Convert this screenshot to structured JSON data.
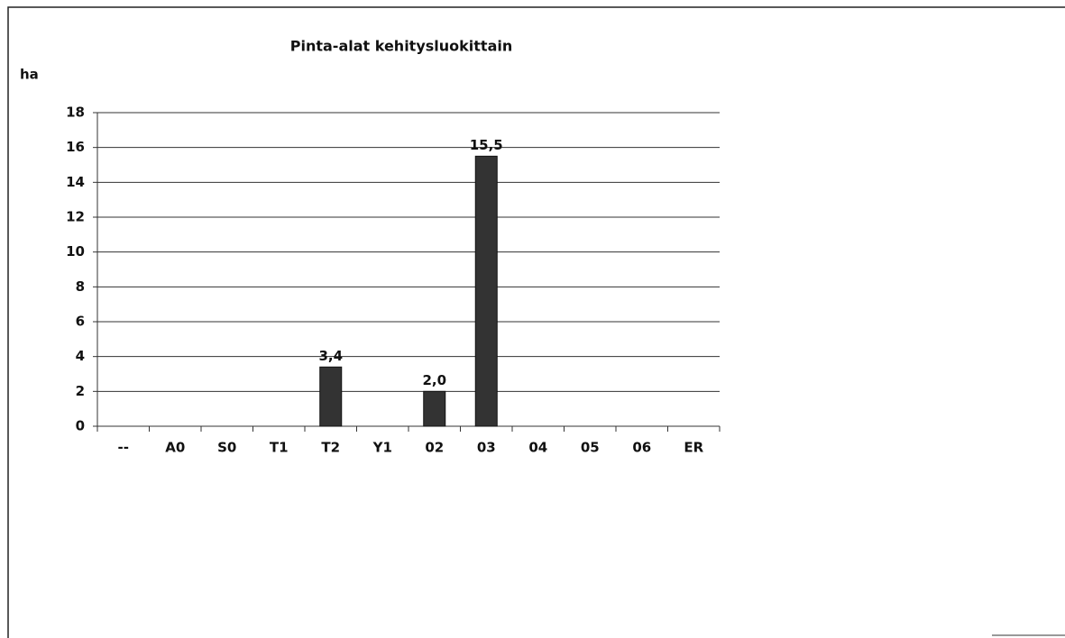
{
  "chart_data": {
    "type": "bar",
    "title": "Pinta-alat kehitysluokittain",
    "ylabel": "ha",
    "categories": [
      "--",
      "A0",
      "S0",
      "T1",
      "T2",
      "Y1",
      "02",
      "03",
      "04",
      "05",
      "06",
      "ER"
    ],
    "values": [
      0,
      0,
      0,
      0,
      3.4,
      0,
      2.0,
      15.5,
      0,
      0,
      0,
      0
    ],
    "value_labels": [
      null,
      null,
      null,
      null,
      "3,4",
      null,
      "2,0",
      "15,5",
      null,
      null,
      null,
      null
    ],
    "color": "#333333",
    "ylim": [
      0,
      18
    ],
    "yticks": [
      0,
      2,
      4,
      6,
      8,
      10,
      12,
      14,
      16,
      18
    ],
    "grid": true
  }
}
